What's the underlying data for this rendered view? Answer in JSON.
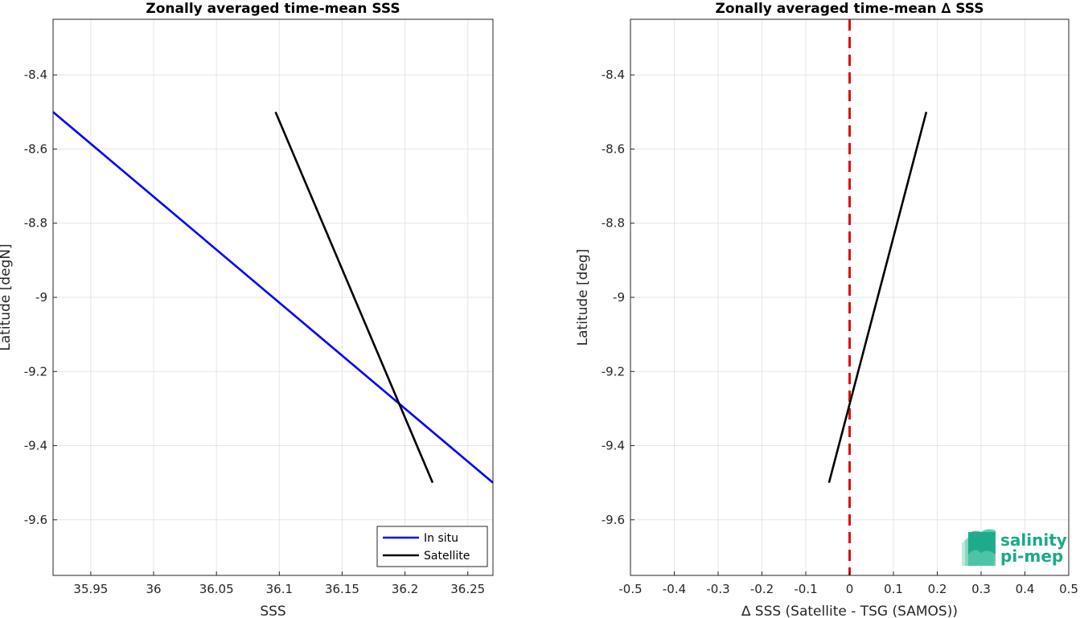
{
  "chart_data": [
    {
      "type": "line",
      "title": "Zonally averaged time-mean SSS",
      "xlabel": "SSS",
      "ylabel": "Latitude [degN]",
      "xlim": [
        35.92,
        36.27
      ],
      "ylim": [
        -9.75,
        -8.25
      ],
      "xticks": [
        35.95,
        36.0,
        36.05,
        36.1,
        36.15,
        36.2,
        36.25
      ],
      "xtick_labels": [
        "35.95",
        "36",
        "36.05",
        "36.1",
        "36.15",
        "36.2",
        "36.25"
      ],
      "yticks": [
        -8.4,
        -8.6,
        -8.8,
        -9.0,
        -9.2,
        -9.4,
        -9.6
      ],
      "ytick_labels": [
        "-8.4",
        "-8.6",
        "-8.8",
        "-9",
        "-9.2",
        "-9.4",
        "-9.6"
      ],
      "grid": true,
      "legend_placement": "bottom-right",
      "series": [
        {
          "name": "In situ",
          "color": "#0000ff",
          "x": [
            35.92,
            36.27
          ],
          "y": [
            -8.5,
            -9.5
          ]
        },
        {
          "name": "Satellite",
          "color": "#000000",
          "x": [
            36.097,
            36.222
          ],
          "y": [
            -8.5,
            -9.5
          ]
        }
      ]
    },
    {
      "type": "line",
      "title": "Zonally averaged time-mean ∆ SSS",
      "xlabel": "∆ SSS (Satellite - TSG (SAMOS))",
      "ylabel": "Latitude [deg]",
      "xlim": [
        -0.5,
        0.5
      ],
      "ylim": [
        -9.75,
        -8.25
      ],
      "xticks": [
        -0.5,
        -0.4,
        -0.3,
        -0.2,
        -0.1,
        0.0,
        0.1,
        0.2,
        0.3,
        0.4,
        0.5
      ],
      "xtick_labels": [
        "-0.5",
        "-0.4",
        "-0.3",
        "-0.2",
        "-0.1",
        "0",
        "0.1",
        "0.2",
        "0.3",
        "0.4",
        "0.5"
      ],
      "yticks": [
        -8.4,
        -8.6,
        -8.8,
        -9.0,
        -9.2,
        -9.4,
        -9.6
      ],
      "ytick_labels": [
        "-8.4",
        "-8.6",
        "-8.8",
        "-9",
        "-9.2",
        "-9.4",
        "-9.6"
      ],
      "grid": true,
      "reference_line": {
        "x": 0,
        "color": "#dd1111",
        "style": "dashed"
      },
      "series": [
        {
          "color": "#000000",
          "x": [
            -0.047,
            0.175
          ],
          "y": [
            -9.5,
            -8.5
          ]
        }
      ]
    }
  ],
  "logo": {
    "line1": "salinity",
    "line2": "pi-mep",
    "color": "#1aa98a"
  }
}
